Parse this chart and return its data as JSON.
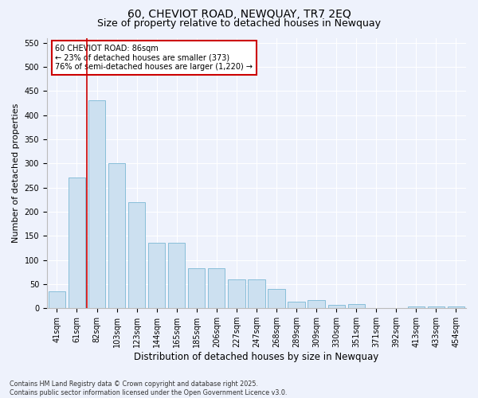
{
  "title": "60, CHEVIOT ROAD, NEWQUAY, TR7 2EQ",
  "subtitle": "Size of property relative to detached houses in Newquay",
  "xlabel": "Distribution of detached houses by size in Newquay",
  "ylabel": "Number of detached properties",
  "categories": [
    "41sqm",
    "61sqm",
    "82sqm",
    "103sqm",
    "123sqm",
    "144sqm",
    "165sqm",
    "185sqm",
    "206sqm",
    "227sqm",
    "247sqm",
    "268sqm",
    "289sqm",
    "309sqm",
    "330sqm",
    "351sqm",
    "371sqm",
    "392sqm",
    "413sqm",
    "433sqm",
    "454sqm"
  ],
  "values": [
    35,
    270,
    430,
    300,
    220,
    135,
    135,
    83,
    83,
    60,
    60,
    40,
    13,
    17,
    7,
    9,
    0,
    0,
    4,
    4,
    3
  ],
  "bar_color": "#cce0f0",
  "bar_edge_color": "#7ab8d4",
  "vline_x": 1.5,
  "vline_color": "#cc0000",
  "annotation_title": "60 CHEVIOT ROAD: 86sqm",
  "annotation_line2": "← 23% of detached houses are smaller (373)",
  "annotation_line3": "76% of semi-detached houses are larger (1,220) →",
  "annotation_box_color": "#cc0000",
  "ylim": [
    0,
    560
  ],
  "yticks": [
    0,
    50,
    100,
    150,
    200,
    250,
    300,
    350,
    400,
    450,
    500,
    550
  ],
  "footer_line1": "Contains HM Land Registry data © Crown copyright and database right 2025.",
  "footer_line2": "Contains public sector information licensed under the Open Government Licence v3.0.",
  "bg_color": "#eef2fc",
  "plot_bg_color": "#eef2fc",
  "title_fontsize": 10,
  "subtitle_fontsize": 9,
  "tick_fontsize": 7,
  "ylabel_fontsize": 8,
  "xlabel_fontsize": 8.5
}
